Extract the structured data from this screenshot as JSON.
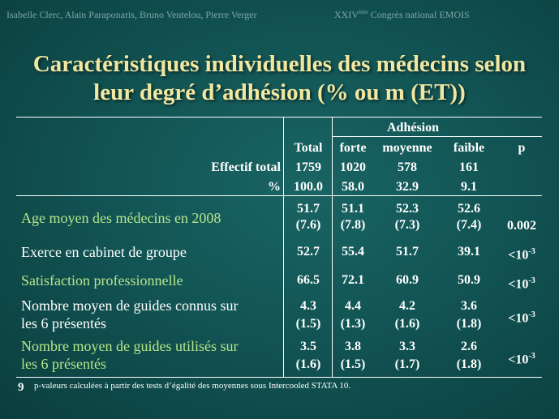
{
  "header": {
    "authors": "Isabelle Clerc, Alain Paraponaris, Bruno Ventelou, Pierre Verger",
    "conference_prefix": "XXIV",
    "conference_sup": "ème",
    "conference_suffix": " Congrès national EMOIS"
  },
  "title": {
    "line1": "Caractéristiques individuelles des médecins selon",
    "line2": "leur degré d’adhésion (% ou m (ET))"
  },
  "table": {
    "group_header": "Adhésion",
    "columns": [
      "Total",
      "forte",
      "moyenne",
      "faible",
      "p"
    ],
    "effectif_label": "Effectif total",
    "effectif_values": [
      "1759",
      "1020",
      "578",
      "161"
    ],
    "percent_label": "%",
    "percent_values": [
      "100.0",
      "58.0",
      "32.9",
      "9.1"
    ],
    "rows": [
      {
        "label_line1": "Age moyen des médecins en 2008",
        "label_line2": "",
        "values": [
          "51.7",
          "51.1",
          "52.3",
          "52.6"
        ],
        "sd": [
          "(7.6)",
          "(7.8)",
          "(7.3)",
          "(7.4)"
        ],
        "p": "0.002",
        "p_exp": ""
      },
      {
        "label_line1": "Exerce en cabinet de groupe",
        "label_line2": "",
        "values": [
          "52.7",
          "55.4",
          "51.7",
          "39.1"
        ],
        "sd": [
          "",
          "",
          "",
          ""
        ],
        "p": "<10",
        "p_exp": "-3"
      },
      {
        "label_line1": "Satisfaction professionnelle",
        "label_line2": "",
        "values": [
          "66.5",
          "72.1",
          "60.9",
          "50.9"
        ],
        "sd": [
          "",
          "",
          "",
          ""
        ],
        "p": "<10",
        "p_exp": "-3"
      },
      {
        "label_line1": "Nombre moyen de guides connus sur",
        "label_line2": "les 6 présentés",
        "values": [
          "4.3",
          "4.4",
          "4.2",
          "3.6"
        ],
        "sd": [
          "(1.5)",
          "(1.3)",
          "(1.6)",
          "(1.8)"
        ],
        "p": "<10",
        "p_exp": "-3"
      },
      {
        "label_line1": "Nombre moyen de guides utilisés sur",
        "label_line2": "les 6 présentés",
        "values": [
          "3.5",
          "3.8",
          "3.3",
          "2.6"
        ],
        "sd": [
          "(1.6)",
          "(1.5)",
          "(1.7)",
          "(1.8)"
        ],
        "p": "<10",
        "p_exp": "-3"
      }
    ]
  },
  "footer": {
    "slide_number": "9",
    "note": "p-valeurs calculées à partir des tests d’égalité des moyennes sous Intercooled STATA 10."
  },
  "colors": {
    "background": "#125454",
    "title": "#f2e7a0",
    "label_green": "#b6e68a",
    "text": "#ffffff"
  }
}
